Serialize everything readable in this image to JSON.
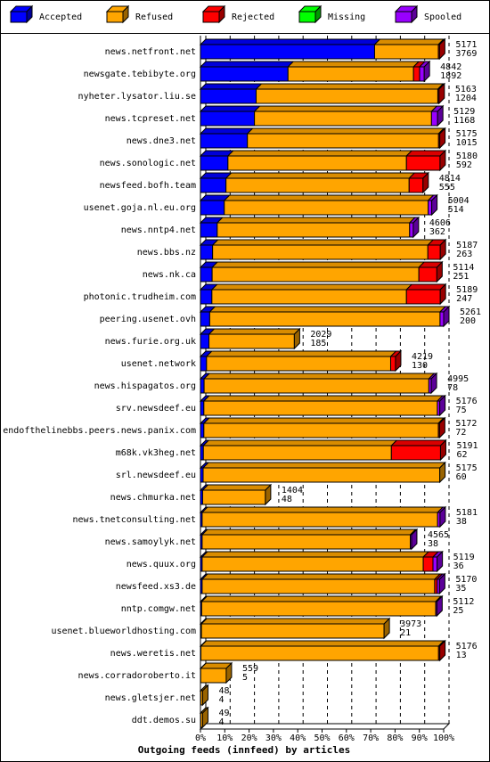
{
  "chart_data": {
    "type": "bar",
    "orientation": "horizontal",
    "stacked": true,
    "x_label": "Outgoing feeds (innfeed) by articles",
    "xlim": [
      0,
      100
    ],
    "xticks": [
      {
        "value": 0,
        "label": "0%"
      },
      {
        "value": 10,
        "label": "10%"
      },
      {
        "value": 20,
        "label": "20%"
      },
      {
        "value": 30,
        "label": "30%"
      },
      {
        "value": 40,
        "label": "40%"
      },
      {
        "value": 50,
        "label": "50%"
      },
      {
        "value": 60,
        "label": "60%"
      },
      {
        "value": 70,
        "label": "70%"
      },
      {
        "value": 80,
        "label": "80%"
      },
      {
        "value": 90,
        "label": "90%"
      },
      {
        "value": 100,
        "label": "100%"
      }
    ],
    "grid": true,
    "legend": "top",
    "categories": [
      "news.netfront.net",
      "newsgate.tebibyte.org",
      "nyheter.lysator.liu.se",
      "news.tcpreset.net",
      "news.dne3.net",
      "news.sonologic.net",
      "newsfeed.bofh.team",
      "usenet.goja.nl.eu.org",
      "news.nntp4.net",
      "news.bbs.nz",
      "news.nk.ca",
      "photonic.trudheim.com",
      "peering.usenet.ovh",
      "news.furie.org.uk",
      "usenet.network",
      "news.hispagatos.org",
      "srv.newsdeef.eu",
      "endofthelinebbs.peers.news.panix.com",
      "m68k.vk3heg.net",
      "srl.newsdeef.eu",
      "news.chmurka.net",
      "news.tnetconsulting.net",
      "news.samoylyk.net",
      "news.quux.org",
      "newsfeed.xs3.de",
      "nntp.comgw.net",
      "usenet.blueworldhosting.com",
      "news.weretis.net",
      "news.corradoroberto.it",
      "news.gletsjer.net",
      "ddt.demos.su"
    ],
    "offered": [
      5171,
      4842,
      5163,
      5129,
      5175,
      5180,
      4814,
      5004,
      4606,
      5187,
      5114,
      5189,
      5261,
      2029,
      4219,
      4995,
      5176,
      5172,
      5191,
      5175,
      1404,
      5181,
      4565,
      5119,
      5170,
      5112,
      3973,
      5176,
      559,
      48,
      49
    ],
    "accepted": [
      3769,
      1892,
      1204,
      1168,
      1015,
      592,
      555,
      514,
      362,
      263,
      251,
      247,
      200,
      185,
      130,
      78,
      75,
      72,
      62,
      60,
      48,
      38,
      38,
      36,
      35,
      25,
      21,
      13,
      5,
      4,
      4
    ],
    "series": [
      {
        "name": "Accepted",
        "color": "#0000ff",
        "values": [
          71.6,
          36.0,
          22.9,
          22.2,
          19.3,
          11.3,
          10.5,
          9.8,
          6.9,
          5.0,
          4.8,
          4.7,
          3.8,
          3.5,
          2.5,
          1.5,
          1.4,
          1.4,
          1.2,
          1.1,
          0.9,
          0.7,
          0.7,
          0.7,
          0.7,
          0.5,
          0.4,
          0.2,
          0.1,
          0.1,
          0.1
        ]
      },
      {
        "name": "Refused",
        "color": "#ffa500",
        "values": [
          26.2,
          51.6,
          74.7,
          72.8,
          78.6,
          73.4,
          75.3,
          83.8,
          79.1,
          88.5,
          85.0,
          80.0,
          94.7,
          35.1,
          75.7,
          92.4,
          96.0,
          96.4,
          77.3,
          97.3,
          25.8,
          96.8,
          85.6,
          90.9,
          95.6,
          96.2,
          75.1,
          97.7,
          10.5,
          0.8,
          0.8
        ]
      },
      {
        "name": "Rejected",
        "color": "#ff0000",
        "values": [
          0.5,
          2.5,
          0.5,
          0,
          0.5,
          13.8,
          5.7,
          0,
          0,
          5.1,
          7.4,
          13.9,
          0,
          0,
          2.0,
          0,
          0,
          0.5,
          20.2,
          0,
          0,
          0,
          0,
          4.0,
          1.0,
          0,
          0,
          0.5,
          0,
          0,
          0
        ]
      },
      {
        "name": "Missing",
        "color": "#00ff00",
        "values": [
          0,
          0,
          0,
          0,
          0,
          0,
          0,
          0,
          0,
          0,
          0,
          0,
          0,
          0,
          0,
          0,
          0,
          0,
          0,
          0,
          0,
          0,
          0,
          0,
          0,
          0,
          0,
          0,
          0,
          0,
          0
        ]
      },
      {
        "name": "Spooled",
        "color": "#9900ff",
        "values": [
          0,
          1.9,
          0,
          2.5,
          0,
          0,
          0,
          1.5,
          1.5,
          0,
          0,
          0,
          1.5,
          0,
          0,
          1.0,
          1.0,
          0,
          0,
          0,
          0,
          1.0,
          0.5,
          1.7,
          1.0,
          0.5,
          0,
          0,
          0,
          0,
          0
        ]
      }
    ]
  }
}
